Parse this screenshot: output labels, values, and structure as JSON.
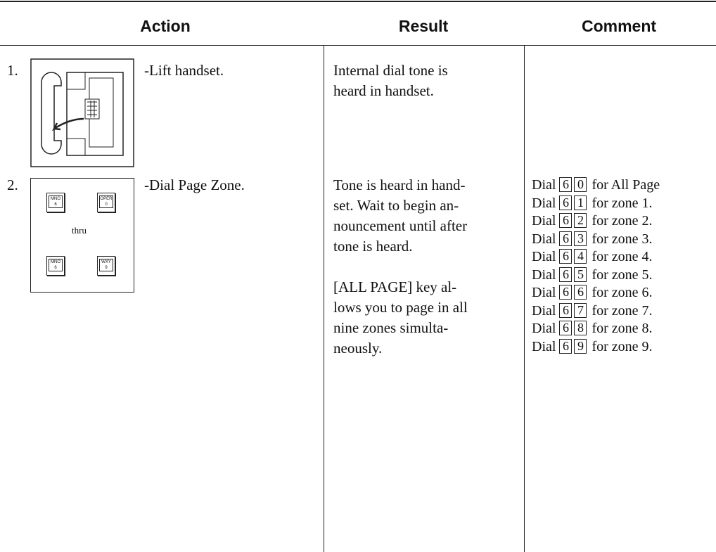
{
  "header": {
    "columns": [
      "Action",
      "Result",
      "Comment"
    ]
  },
  "rows": [
    {
      "number": "1.",
      "action": "-Lift handset.",
      "result": [
        [
          "Internal dial tone is",
          "heard in handset."
        ]
      ]
    },
    {
      "number": "2.",
      "action": "-Dial Page Zone.",
      "illustration": {
        "keys": [
          [
            "MNO",
            "6"
          ],
          [
            "OPER",
            "0"
          ],
          [
            "MNO",
            "6"
          ],
          [
            "WXY",
            "9"
          ]
        ],
        "between": "thru"
      },
      "result": [
        [
          "Tone is heard in hand-",
          "set. Wait to begin an-",
          "nouncement until after",
          "tone is heard."
        ],
        [
          "[ALL PAGE] key al-",
          "lows you to page in all",
          "nine zones simulta-",
          "neously."
        ]
      ],
      "comment": [
        {
          "prefix": "Dial",
          "keys": [
            "6",
            "0"
          ],
          "suffix": "for All Page"
        },
        {
          "prefix": "Dial",
          "keys": [
            "6",
            "1"
          ],
          "suffix": "for zone 1."
        },
        {
          "prefix": "Dial",
          "keys": [
            "6",
            "2"
          ],
          "suffix": "for zone 2."
        },
        {
          "prefix": "Dial",
          "keys": [
            "6",
            "3"
          ],
          "suffix": "for zone 3."
        },
        {
          "prefix": "Dial",
          "keys": [
            "6",
            "4"
          ],
          "suffix": "for zone 4."
        },
        {
          "prefix": "Dial",
          "keys": [
            "6",
            "5"
          ],
          "suffix": "for zone 5."
        },
        {
          "prefix": "Dial",
          "keys": [
            "6",
            "6"
          ],
          "suffix": "for zone 6."
        },
        {
          "prefix": "Dial",
          "keys": [
            "6",
            "7"
          ],
          "suffix": "for zone 7."
        },
        {
          "prefix": "Dial",
          "keys": [
            "6",
            "8"
          ],
          "suffix": "for zone 8."
        },
        {
          "prefix": "Dial",
          "keys": [
            "6",
            "9"
          ],
          "suffix": "for zone 9."
        }
      ]
    }
  ]
}
